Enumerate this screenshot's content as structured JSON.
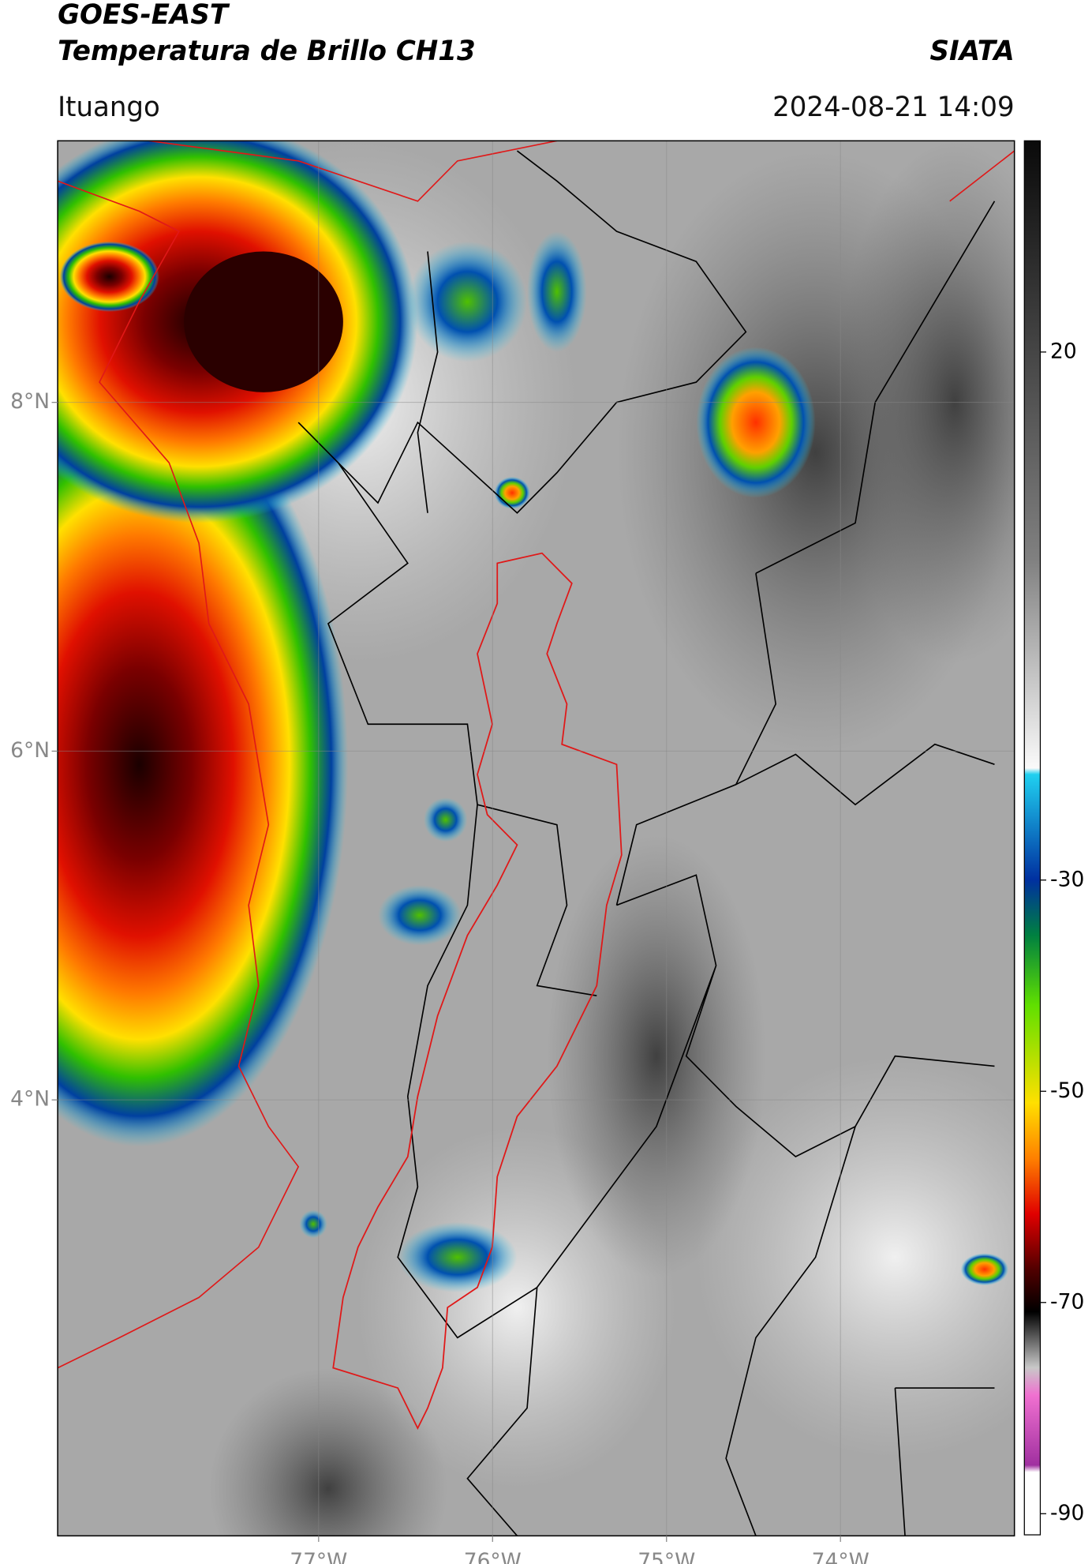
{
  "header": {
    "title": "GOES-EAST",
    "subtitle": "Temperatura de Brillo CH13",
    "source": "SIATA",
    "location": "Ituango",
    "datetime": "2024-08-21 14:09"
  },
  "map": {
    "xlim": [
      -78.5,
      -73
    ],
    "ylim": [
      1.5,
      9.5
    ],
    "xticks": [
      {
        "value": -77,
        "label": "77°W"
      },
      {
        "value": -76,
        "label": "76°W"
      },
      {
        "value": -75,
        "label": "75°W"
      },
      {
        "value": -74,
        "label": "74°W"
      }
    ],
    "yticks": [
      {
        "value": 8,
        "label": "8°N"
      },
      {
        "value": 6,
        "label": "6°N"
      },
      {
        "value": 4,
        "label": "4°N"
      }
    ],
    "grid": true
  },
  "colorbar": {
    "lim": [
      -92,
      40
    ],
    "ticks": [
      20,
      -30,
      -50,
      -70,
      -90
    ]
  }
}
